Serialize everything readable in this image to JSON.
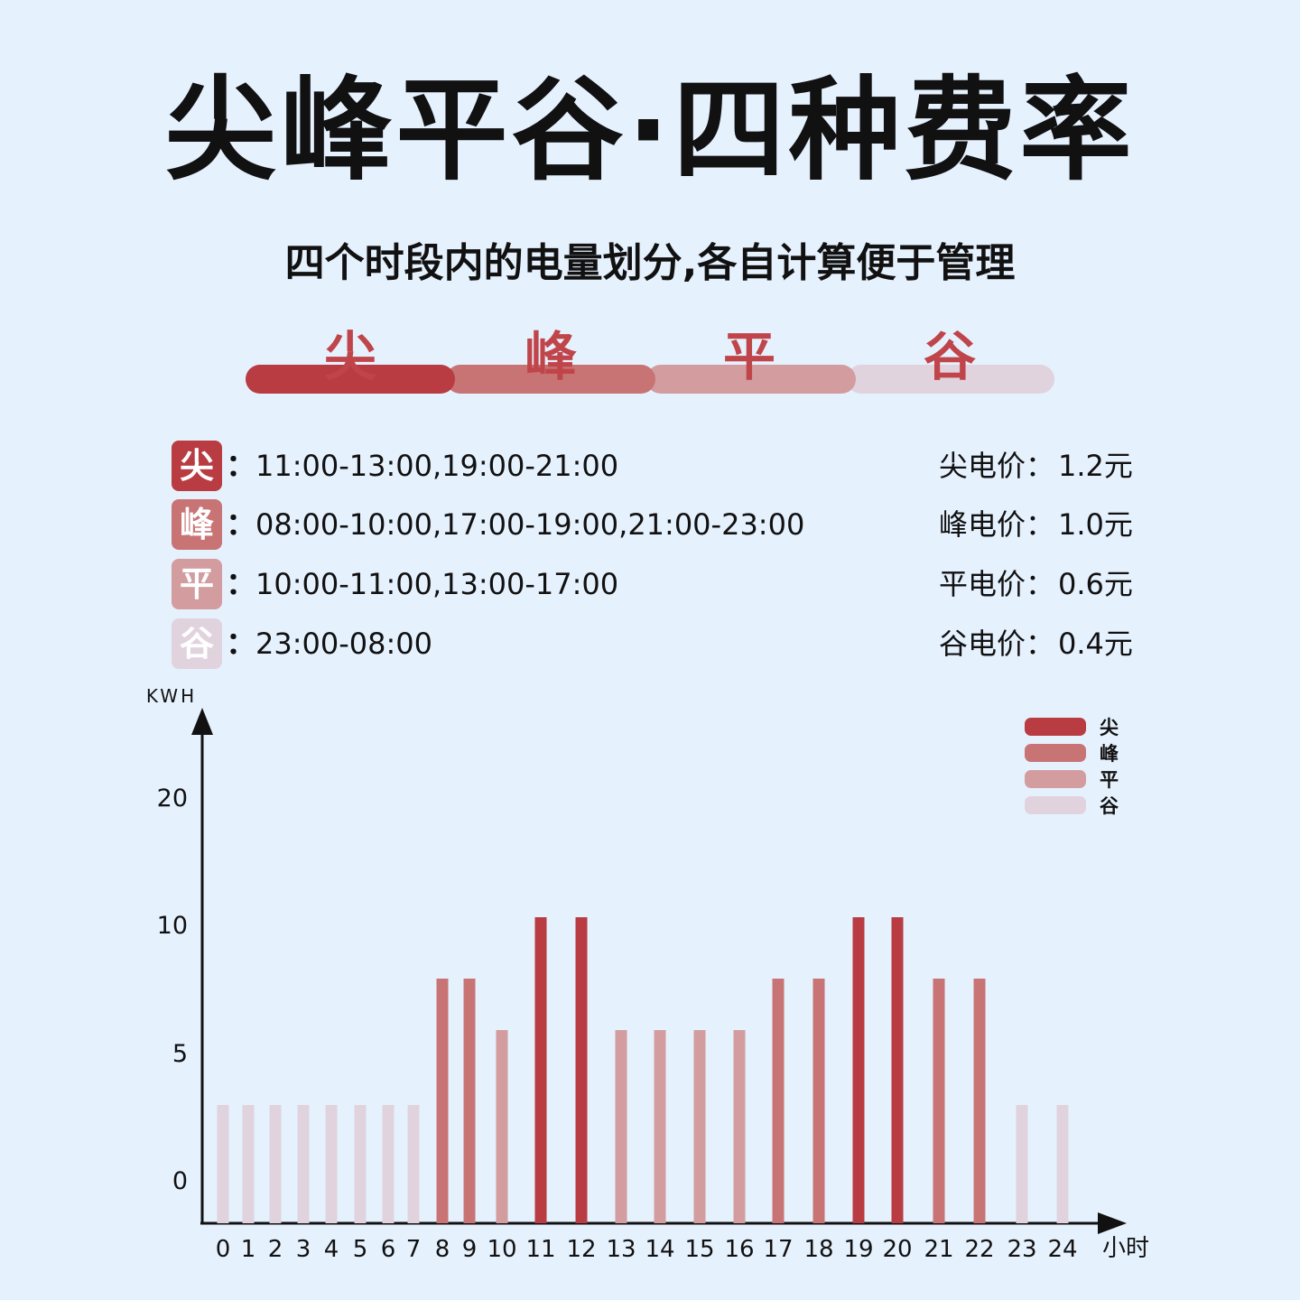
{
  "title": "尖峰平谷·四种费率",
  "subtitle": "四个时段内的电量划分,各自计算便于管理",
  "tiers": [
    {
      "name": "尖",
      "color": "#b83c41",
      "times": "11:00-13:00,19:00-21:00",
      "price_label": "尖电价：",
      "price": "1.2元"
    },
    {
      "name": "峰",
      "color": "#c87475",
      "times": "08:00-10:00,17:00-19:00,21:00-23:00",
      "price_label": "峰电价：",
      "price": "1.0元"
    },
    {
      "name": "平",
      "color": "#d39c9f",
      "times": "10:00-11:00,13:00-17:00",
      "price_label": "平电价：",
      "price": "0.6元"
    },
    {
      "name": "谷",
      "color": "#e0d3de",
      "times": "23:00-08:00",
      "price_label": "谷电价：",
      "price": "0.4元"
    }
  ],
  "colon": "：",
  "chart_data": {
    "type": "bar",
    "ylabel": "KWH",
    "xlabel": "小时",
    "ytick_labels": [
      "0",
      "5",
      "10",
      "20"
    ],
    "categories": [
      "0",
      "1",
      "2",
      "3",
      "4",
      "5",
      "6",
      "7",
      "8",
      "9",
      "10",
      "11",
      "12",
      "13",
      "14",
      "15",
      "16",
      "17",
      "18",
      "19",
      "20",
      "21",
      "22",
      "23",
      "24"
    ],
    "values": [
      3,
      3,
      3,
      3,
      3,
      3,
      3,
      3,
      7.6,
      7.6,
      5.6,
      10,
      10,
      5.6,
      5.6,
      5.6,
      5.6,
      7.6,
      7.6,
      10,
      10,
      7.6,
      7.6,
      3,
      3
    ],
    "tier_index": [
      3,
      3,
      3,
      3,
      3,
      3,
      3,
      3,
      1,
      1,
      2,
      0,
      0,
      2,
      2,
      2,
      2,
      1,
      1,
      0,
      0,
      1,
      1,
      3,
      3
    ],
    "legend": [
      "尖",
      "峰",
      "平",
      "谷"
    ],
    "legend_position": "top-right",
    "grid": false
  }
}
